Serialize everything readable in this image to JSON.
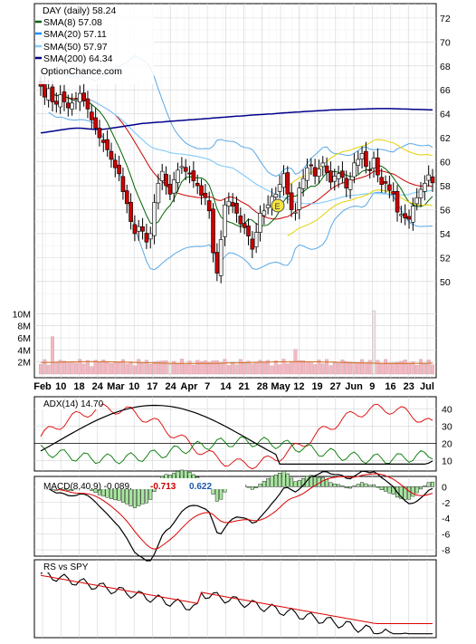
{
  "chart_data": {
    "type": "candlestick",
    "source_label": "OptionChance.com",
    "date_labels": [
      "Feb",
      "10",
      "18",
      "24",
      "Mar",
      "10",
      "17",
      "24",
      "Apr",
      "7",
      "14",
      "21",
      "28",
      "May",
      "12",
      "19",
      "27",
      "Jun",
      "9",
      "16",
      "23",
      "Jul"
    ],
    "price_panel": {
      "legend": [
        {
          "label": "DAY (daily) 58.24",
          "color": "#000000",
          "style": "none"
        },
        {
          "label": "SMA(8) 57.08",
          "color": "#006400",
          "style": "line"
        },
        {
          "label": "SMA(20) 57.11",
          "color": "#1e90ff",
          "style": "line"
        },
        {
          "label": "SMA(50) 57.97",
          "color": "#87cefa",
          "style": "line"
        },
        {
          "label": "SMA(200) 64.34",
          "color": "#00008b",
          "style": "line"
        }
      ],
      "y_ticks": [
        "72",
        "70",
        "68",
        "66",
        "64",
        "62",
        "60",
        "58",
        "56",
        "54",
        "52",
        "50"
      ],
      "ylim": [
        48.4,
        73.2
      ],
      "close": [
        66.3,
        65.4,
        66.1,
        65.0,
        64.8,
        65.6,
        65.0,
        64.5,
        64.9,
        65.2,
        65.7,
        65.1,
        64.4,
        63.5,
        62.8,
        62.0,
        61.6,
        61.0,
        60.2,
        59.5,
        59.0,
        57.5,
        56.5,
        55.0,
        54.0,
        54.6,
        54.2,
        53.3,
        54.0,
        56.6,
        58.2,
        59.2,
        58.0,
        57.3,
        58.5,
        59.3,
        59.6,
        59.2,
        59.0,
        58.4,
        58.0,
        57.2,
        57.0,
        55.9,
        52.4,
        50.7,
        53.5,
        56.4,
        56.7,
        56.3,
        55.7,
        54.8,
        54.5,
        53.8,
        52.7,
        54.1,
        55.7,
        55.9,
        56.4,
        57.1,
        57.3,
        58.1,
        59.0,
        57.3,
        56.0,
        55.8,
        57.8,
        58.6,
        59.5,
        59.7,
        58.8,
        59.4,
        59.9,
        59.1,
        58.3,
        58.8,
        59.0,
        58.7,
        57.8,
        58.5,
        59.9,
        60.2,
        60.7,
        59.6,
        59.3,
        60.3,
        58.9,
        58.1,
        58.2,
        57.6,
        57.3,
        55.8,
        55.6,
        55.3,
        55.2,
        56.3,
        57.0,
        57.7,
        58.2,
        58.9,
        58.24
      ],
      "sma200": [
        62.4,
        62.45,
        62.5,
        62.55,
        62.6,
        62.65,
        62.7,
        62.75,
        62.78,
        62.8,
        62.8,
        62.78,
        62.75,
        62.72,
        62.7,
        62.7,
        62.72,
        62.75,
        62.8,
        62.85,
        62.9,
        62.95,
        63.0,
        63.05,
        63.1,
        63.15,
        63.2,
        63.22,
        63.25,
        63.28,
        63.3,
        63.32,
        63.35,
        63.38,
        63.4,
        63.42,
        63.45,
        63.48,
        63.5,
        63.52,
        63.55,
        63.57,
        63.6,
        63.62,
        63.65,
        63.67,
        63.7,
        63.72,
        63.75,
        63.78,
        63.8,
        63.82,
        63.85,
        63.87,
        63.9,
        63.92,
        63.94,
        63.96,
        63.98,
        64.0,
        64.02,
        64.05,
        64.08,
        64.1,
        64.12,
        64.14,
        64.16,
        64.18,
        64.2,
        64.22,
        64.24,
        64.26,
        64.28,
        64.3,
        64.32,
        64.33,
        64.34,
        64.35,
        64.36,
        64.37,
        64.38,
        64.39,
        64.4,
        64.41,
        64.42,
        64.43,
        64.44,
        64.44,
        64.44,
        64.44,
        64.43,
        64.42,
        64.41,
        64.4,
        64.39,
        64.38,
        64.37,
        64.36,
        64.35,
        64.34,
        64.34
      ]
    },
    "volume_panel": {
      "y_ticks": [
        "10M",
        "8M",
        "6M",
        "4M",
        "2M"
      ],
      "ylim": [
        0,
        12
      ]
    },
    "adx_panel": {
      "label": "ADX(14) 14.70",
      "y_ticks": [
        "40",
        "30",
        "20",
        "10"
      ],
      "ylim": [
        4,
        47
      ]
    },
    "macd_panel": {
      "label": "MACD(8,40,9) -0.089,",
      "value_1": "-0.713",
      "value_2": "0.622",
      "value_1_color": "#cc0000",
      "value_2_color": "#1e5aa8",
      "y_ticks": [
        "0",
        "-2",
        "-4",
        "-6",
        "-8"
      ],
      "ylim": [
        -8.8,
        1.3
      ]
    },
    "rs_panel": {
      "label": "RS vs SPY"
    },
    "colors": {
      "up_candle": "#f0f0f0",
      "down_candle": "#cc0000",
      "volume_bar": "#f4b8c2",
      "grid": "#d3d3d3"
    }
  }
}
